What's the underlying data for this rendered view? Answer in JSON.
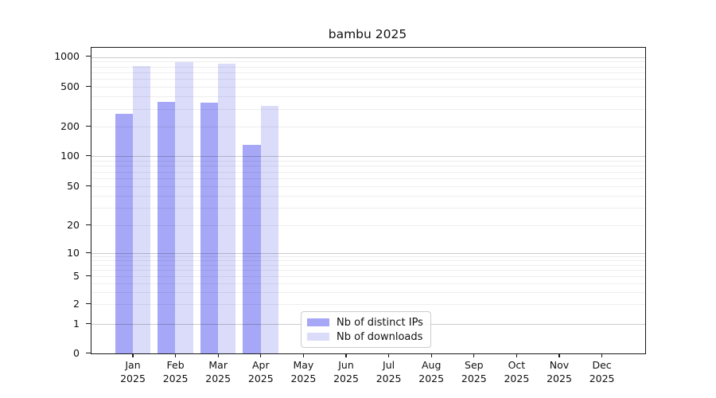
{
  "colors": {
    "distinct_ips": "#a6a7f6",
    "downloads": "#dbdcfa",
    "axis": "#1a1a1a",
    "background": "#ffffff"
  },
  "chart_data": {
    "type": "bar",
    "title": "bambu 2025",
    "categories": [
      "Jan 2025",
      "Feb 2025",
      "Mar 2025",
      "Apr 2025",
      "May 2025",
      "Jun 2025",
      "Jul 2025",
      "Aug 2025",
      "Sep 2025",
      "Oct 2025",
      "Nov 2025",
      "Dec 2025"
    ],
    "series": [
      {
        "name": "Nb of distinct IPs",
        "color": "#a6a7f6",
        "values": [
          270,
          355,
          345,
          130,
          null,
          null,
          null,
          null,
          null,
          null,
          null,
          null
        ]
      },
      {
        "name": "Nb of downloads",
        "color": "#dbdcfa",
        "values": [
          815,
          880,
          860,
          325,
          null,
          null,
          null,
          null,
          null,
          null,
          null,
          null
        ]
      }
    ],
    "yscale": "symlog",
    "y_ticks": [
      0,
      1,
      2,
      5,
      10,
      20,
      50,
      100,
      200,
      500,
      1000
    ],
    "ylim": [
      0,
      1100
    ],
    "xlabel": "",
    "ylabel": "",
    "grid": "both",
    "legend_position": "lower center"
  }
}
